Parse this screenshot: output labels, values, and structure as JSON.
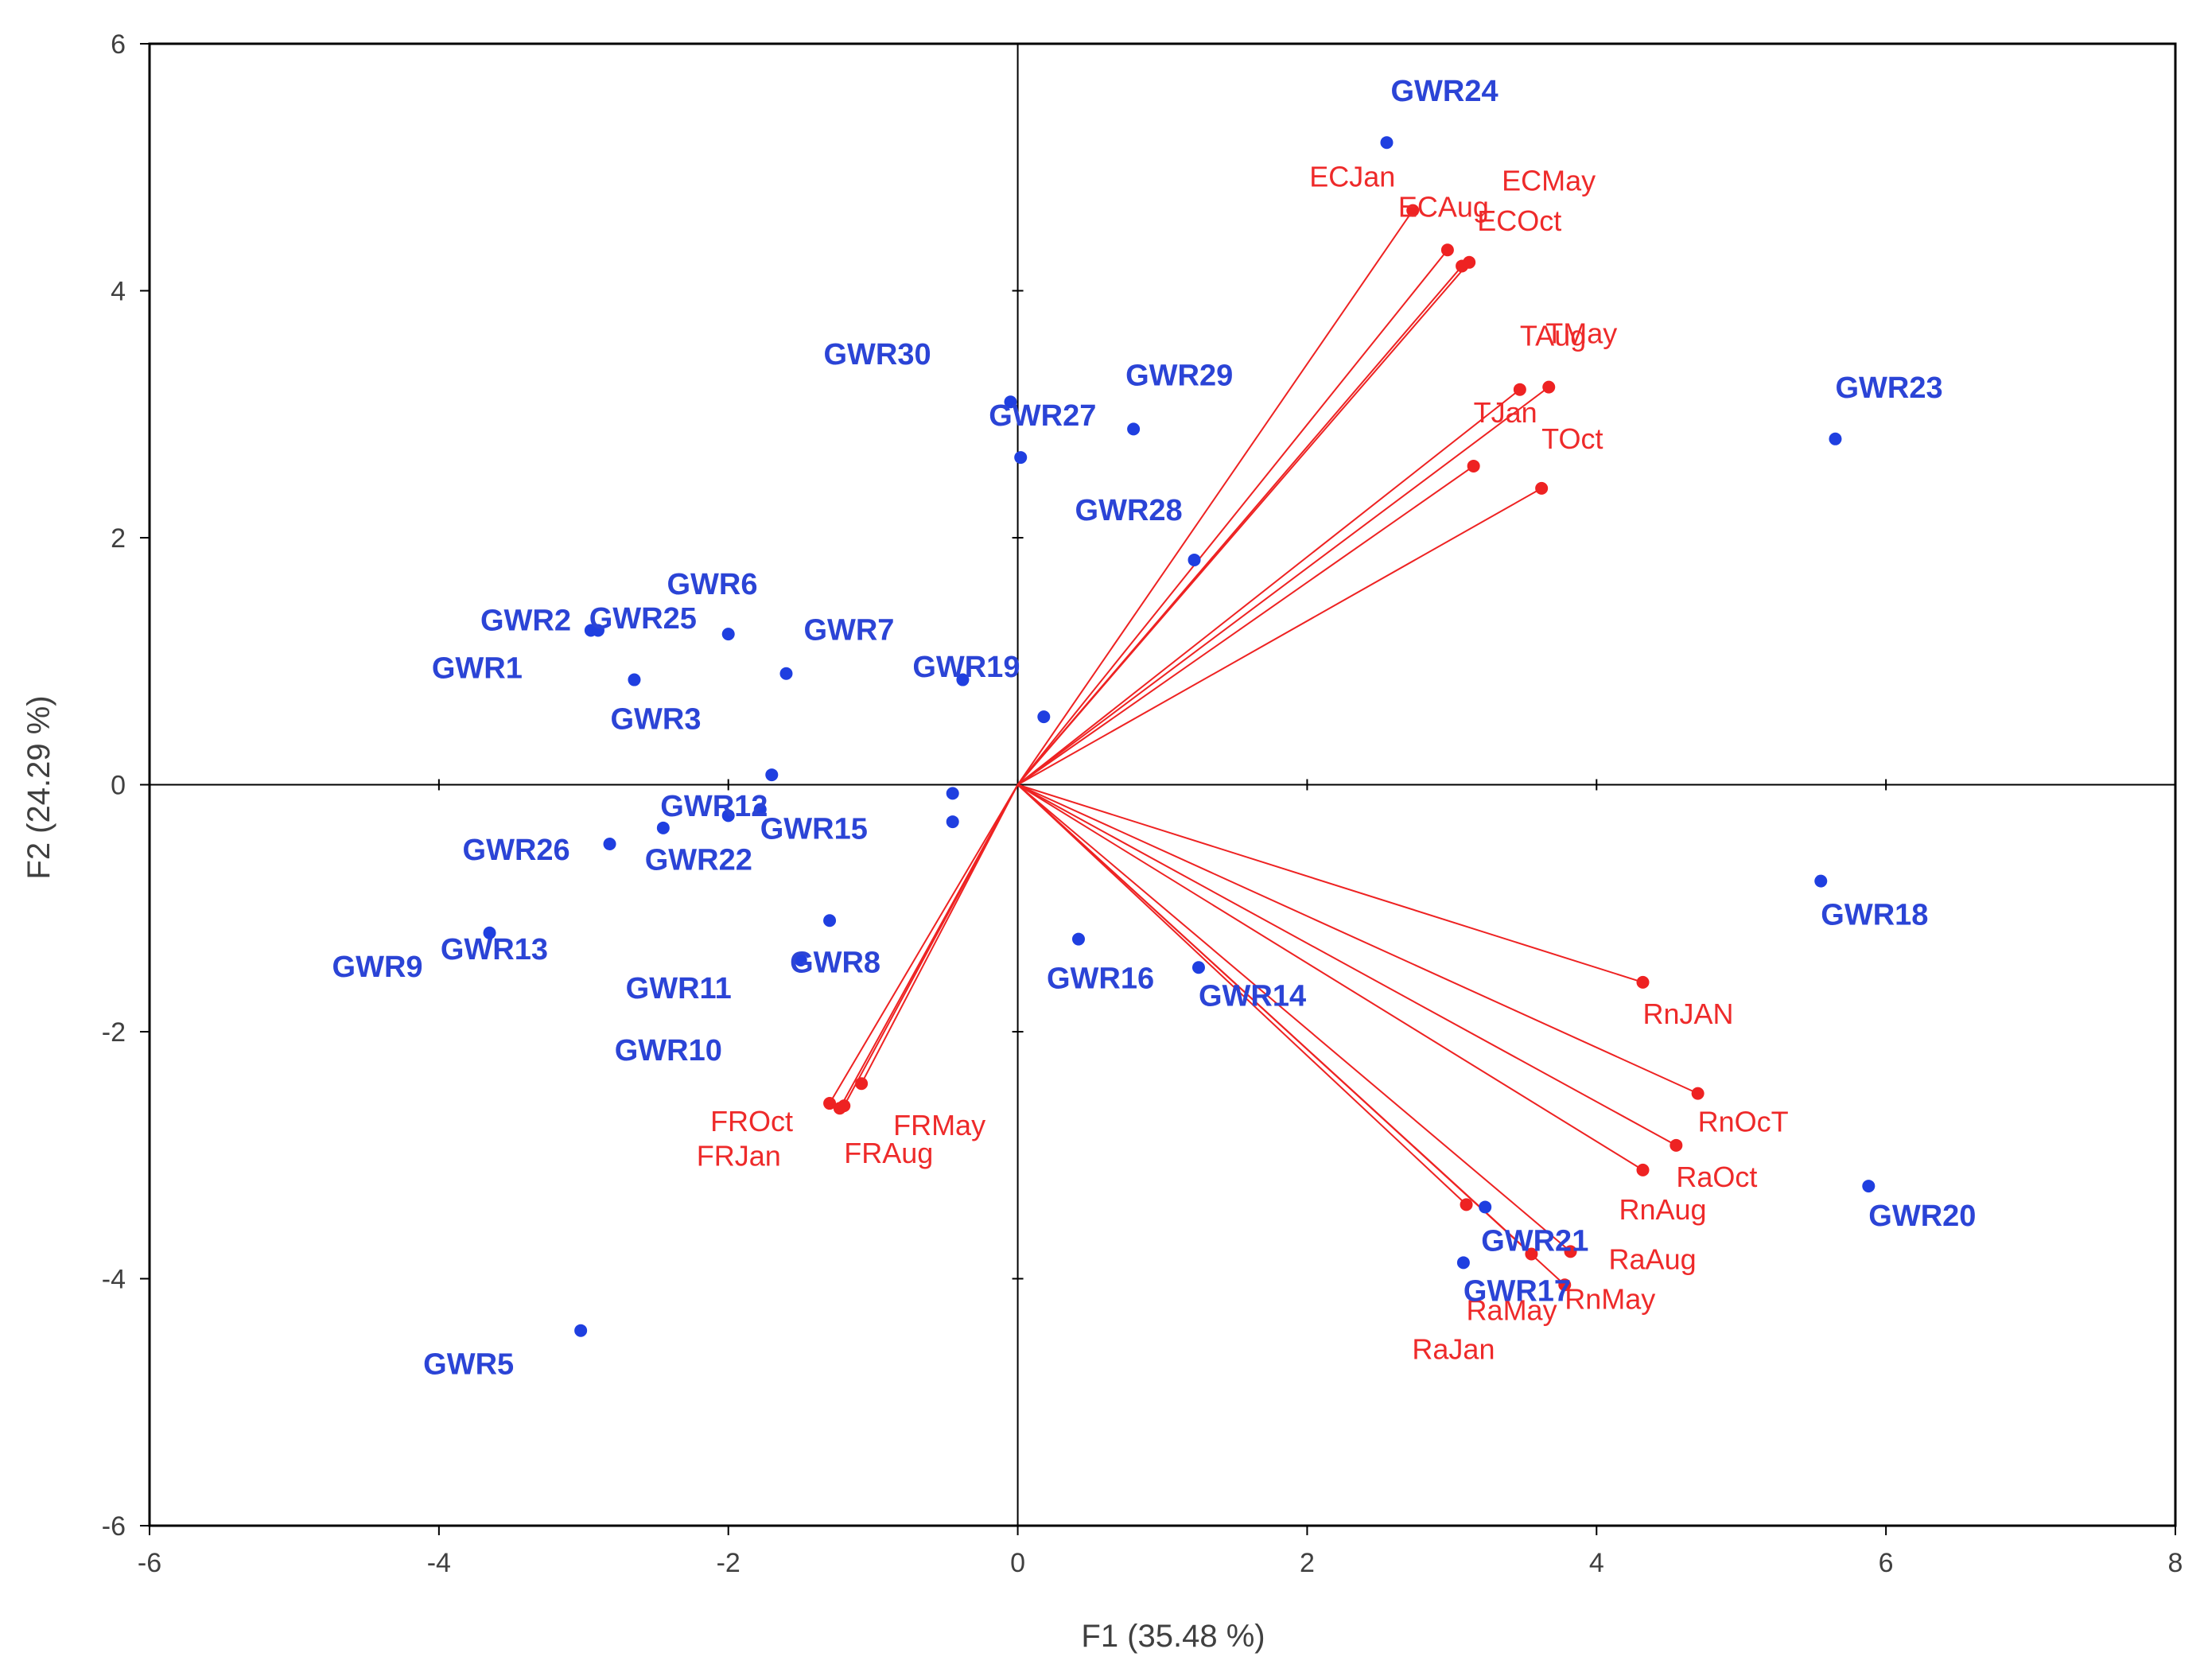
{
  "chart_data": {
    "type": "scatter",
    "title": "",
    "xlabel": "F1 (35.48 %)",
    "ylabel": "F2 (24.29 %)",
    "xlim": [
      -6,
      8
    ],
    "ylim": [
      -6,
      6
    ],
    "xticks": [
      -6,
      -4,
      -2,
      0,
      2,
      4,
      6,
      8
    ],
    "yticks": [
      -6,
      -4,
      -2,
      0,
      2,
      4,
      6
    ],
    "grid": false,
    "colors": {
      "observations": "#1f3fe0",
      "variables": "#ee2222",
      "axes": "#000000"
    },
    "observations": [
      {
        "name": "GWR24",
        "x": 2.55,
        "y": 5.2
      },
      {
        "name": "GWR23",
        "x": 5.65,
        "y": 2.8
      },
      {
        "name": "GWR18",
        "x": 5.55,
        "y": -0.78
      },
      {
        "name": "GWR20",
        "x": 5.88,
        "y": -3.25
      },
      {
        "name": "GWR21",
        "x": 3.23,
        "y": -3.42
      },
      {
        "name": "GWR17",
        "x": 3.08,
        "y": -3.87
      },
      {
        "name": "GWR16",
        "x": 0.42,
        "y": -1.25
      },
      {
        "name": "GWR14",
        "x": 1.25,
        "y": -1.48
      },
      {
        "name": "GWR19",
        "x": 0.18,
        "y": 0.55
      },
      {
        "name": "GWR28",
        "x": 1.22,
        "y": 1.82
      },
      {
        "name": "GWR29",
        "x": 0.8,
        "y": 2.88
      },
      {
        "name": "GWR27",
        "x": 0.02,
        "y": 2.65
      },
      {
        "name": "GWR30",
        "x": -0.05,
        "y": 3.1
      },
      {
        "name": "GWR1",
        "x": -2.95,
        "y": 1.25
      },
      {
        "name": "GWR6",
        "x": -1.6,
        "y": 0.9
      },
      {
        "name": "GWR7",
        "x": -0.38,
        "y": 0.85
      },
      {
        "name": "GWR2",
        "x": -2.9,
        "y": 1.25
      },
      {
        "name": "GWR25",
        "x": -2.0,
        "y": 1.22
      },
      {
        "name": "GWR3",
        "x": -2.65,
        "y": 0.85
      },
      {
        "name": "GWR12",
        "x": -1.7,
        "y": 0.08
      },
      {
        "name": "GWR15",
        "x": -1.78,
        "y": -0.2
      },
      {
        "name": "GWR22",
        "x": -2.0,
        "y": -0.25
      },
      {
        "name": "GWR26",
        "x": -2.82,
        "y": -0.48
      },
      {
        "name": "GWR13",
        "x": -2.45,
        "y": -0.35
      },
      {
        "name": "GWR8",
        "x": -1.3,
        "y": -1.1
      },
      {
        "name": "GWR9",
        "x": -3.65,
        "y": -1.2
      },
      {
        "name": "GWR11",
        "x": -1.5,
        "y": -1.42
      },
      {
        "name": "GWR10",
        "x": -0.45,
        "y": -0.3
      },
      {
        "name": "GWR5",
        "x": -3.02,
        "y": -4.42
      },
      {
        "name": "",
        "x": -0.45,
        "y": -0.07
      }
    ],
    "variables": [
      {
        "name": "ECJan",
        "x": 2.73,
        "y": 4.65
      },
      {
        "name": "ECAug",
        "x": 2.97,
        "y": 4.33
      },
      {
        "name": "ECMay",
        "x": 3.07,
        "y": 4.2
      },
      {
        "name": "ECOct",
        "x": 3.12,
        "y": 4.23
      },
      {
        "name": "TAug",
        "x": 3.47,
        "y": 3.2
      },
      {
        "name": "TMay",
        "x": 3.67,
        "y": 3.22
      },
      {
        "name": "TJan",
        "x": 3.15,
        "y": 2.58
      },
      {
        "name": "TOct",
        "x": 3.62,
        "y": 2.4
      },
      {
        "name": "RnJAN",
        "x": 4.32,
        "y": -1.6
      },
      {
        "name": "RnOcT",
        "x": 4.7,
        "y": -2.5
      },
      {
        "name": "RaOct",
        "x": 4.55,
        "y": -2.92
      },
      {
        "name": "RnAug",
        "x": 4.32,
        "y": -3.12
      },
      {
        "name": "RaAug",
        "x": 3.82,
        "y": -3.78
      },
      {
        "name": "RnMay",
        "x": 3.78,
        "y": -4.05
      },
      {
        "name": "RaJan",
        "x": 3.55,
        "y": -3.8
      },
      {
        "name": "RaMay",
        "x": 3.1,
        "y": -3.4
      },
      {
        "name": "FROct",
        "x": -1.3,
        "y": -2.58
      },
      {
        "name": "FRJan",
        "x": -1.23,
        "y": -2.62
      },
      {
        "name": "FRAug",
        "x": -1.2,
        "y": -2.6
      },
      {
        "name": "FRMay",
        "x": -1.08,
        "y": -2.42
      }
    ]
  }
}
